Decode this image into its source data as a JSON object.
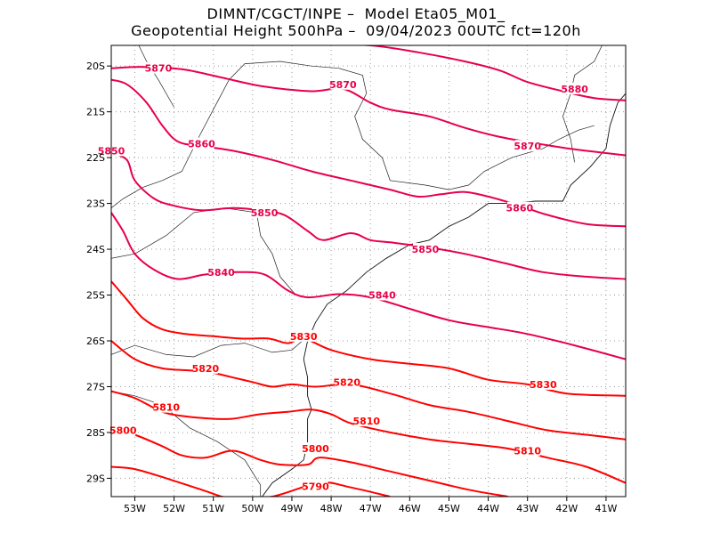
{
  "title_line1": "DIMNT/CGCT/INPE –  Model Eta05_M01_",
  "title_line2": "Geopotential Height 500hPa –  09/04/2023 00UTC fct=120h",
  "chart_data": {
    "type": "contour_map",
    "variable": "Geopotential Height 500hPa",
    "x_axis": {
      "range": [
        -53.6,
        -40.5
      ],
      "ticks": [
        {
          "value": -53,
          "label": "53W"
        },
        {
          "value": -52,
          "label": "52W"
        },
        {
          "value": -51,
          "label": "51W"
        },
        {
          "value": -50,
          "label": "50W"
        },
        {
          "value": -49,
          "label": "49W"
        },
        {
          "value": -48,
          "label": "48W"
        },
        {
          "value": -47,
          "label": "47W"
        },
        {
          "value": -46,
          "label": "46W"
        },
        {
          "value": -45,
          "label": "45W"
        },
        {
          "value": -44,
          "label": "44W"
        },
        {
          "value": -43,
          "label": "43W"
        },
        {
          "value": -42,
          "label": "42W"
        },
        {
          "value": -41,
          "label": "41W"
        }
      ]
    },
    "y_axis": {
      "range": [
        -29.4,
        -19.55
      ],
      "ticks": [
        {
          "value": -20,
          "label": "20S"
        },
        {
          "value": -21,
          "label": "21S"
        },
        {
          "value": -22,
          "label": "22S"
        },
        {
          "value": -23,
          "label": "23S"
        },
        {
          "value": -24,
          "label": "24S"
        },
        {
          "value": -25,
          "label": "25S"
        },
        {
          "value": -26,
          "label": "26S"
        },
        {
          "value": -27,
          "label": "27S"
        },
        {
          "value": -28,
          "label": "28S"
        },
        {
          "value": -29,
          "label": "29S"
        }
      ]
    },
    "grid": true,
    "contours": [
      {
        "level": 5880,
        "color": "#e8004a",
        "points": [
          [
            -48.5,
            -19.5
          ],
          [
            -47,
            -19.55
          ],
          [
            -45.8,
            -19.7
          ],
          [
            -44.6,
            -19.9
          ],
          [
            -43.7,
            -20.1
          ],
          [
            -43,
            -20.35
          ],
          [
            -42.1,
            -20.55
          ],
          [
            -41.3,
            -20.7
          ],
          [
            -40.5,
            -20.75
          ]
        ],
        "labels": [
          {
            "text": "5880",
            "lon": -41.8,
            "lat": -20.5
          }
        ]
      },
      {
        "level": 5870,
        "color": "#e8004a",
        "points": [
          [
            -53.6,
            -20.05
          ],
          [
            -52.8,
            -20.02
          ],
          [
            -51.8,
            -20.07
          ],
          [
            -50.8,
            -20.25
          ],
          [
            -49.7,
            -20.45
          ],
          [
            -48.5,
            -20.55
          ],
          [
            -47.7,
            -20.5
          ],
          [
            -47,
            -20.8
          ],
          [
            -46.5,
            -20.95
          ],
          [
            -45.5,
            -21.1
          ],
          [
            -44.6,
            -21.35
          ],
          [
            -43.7,
            -21.55
          ],
          [
            -42.7,
            -21.7
          ],
          [
            -41.8,
            -21.82
          ],
          [
            -40.5,
            -21.95
          ]
        ],
        "labels": [
          {
            "text": "5870",
            "lon": -52.4,
            "lat": -20.05
          },
          {
            "text": "5870",
            "lon": -47.7,
            "lat": -20.4
          },
          {
            "text": "5870",
            "lon": -43,
            "lat": -21.75
          }
        ]
      },
      {
        "level": 5860,
        "color": "#e8004a",
        "points": [
          [
            -53.6,
            -20.3
          ],
          [
            -53.2,
            -20.4
          ],
          [
            -52.7,
            -20.8
          ],
          [
            -52.3,
            -21.3
          ],
          [
            -51.9,
            -21.65
          ],
          [
            -51.3,
            -21.75
          ],
          [
            -50.5,
            -21.85
          ],
          [
            -49.5,
            -22.05
          ],
          [
            -48.5,
            -22.3
          ],
          [
            -47.5,
            -22.5
          ],
          [
            -46.5,
            -22.7
          ],
          [
            -45.8,
            -22.85
          ],
          [
            -45.2,
            -22.8
          ],
          [
            -44.6,
            -22.75
          ],
          [
            -44,
            -22.85
          ],
          [
            -43.2,
            -23.05
          ],
          [
            -42.5,
            -23.25
          ],
          [
            -41.5,
            -23.45
          ],
          [
            -40.5,
            -23.5
          ]
        ],
        "labels": [
          {
            "text": "5860",
            "lon": -51.3,
            "lat": -21.7
          },
          {
            "text": "5860",
            "lon": -43.2,
            "lat": -23.1
          }
        ]
      },
      {
        "level": 5850,
        "color": "#e8004a",
        "points": [
          [
            -53.6,
            -21.9
          ],
          [
            -53.2,
            -22.05
          ],
          [
            -53,
            -22.5
          ],
          [
            -52.5,
            -22.9
          ],
          [
            -52,
            -23.05
          ],
          [
            -51.3,
            -23.15
          ],
          [
            -50.5,
            -23.1
          ],
          [
            -49.8,
            -23.15
          ],
          [
            -49.2,
            -23.25
          ],
          [
            -48.6,
            -23.6
          ],
          [
            -48.2,
            -23.8
          ],
          [
            -47.5,
            -23.65
          ],
          [
            -47,
            -23.8
          ],
          [
            -46.5,
            -23.85
          ],
          [
            -45.6,
            -23.95
          ],
          [
            -44.6,
            -24.1
          ],
          [
            -43.6,
            -24.3
          ],
          [
            -42.6,
            -24.5
          ],
          [
            -41.5,
            -24.6
          ],
          [
            -40.5,
            -24.65
          ]
        ],
        "labels": [
          {
            "text": "5850",
            "lon": -53.6,
            "lat": -21.85
          },
          {
            "text": "5850",
            "lon": -49.7,
            "lat": -23.2
          },
          {
            "text": "5850",
            "lon": -45.6,
            "lat": -24.0
          }
        ]
      },
      {
        "level": 5840,
        "color": "#e8004a",
        "points": [
          [
            -53.6,
            -23.2
          ],
          [
            -53.3,
            -23.6
          ],
          [
            -53,
            -24.1
          ],
          [
            -52.5,
            -24.45
          ],
          [
            -51.9,
            -24.65
          ],
          [
            -51.2,
            -24.55
          ],
          [
            -50.4,
            -24.5
          ],
          [
            -49.7,
            -24.55
          ],
          [
            -49.1,
            -24.9
          ],
          [
            -48.6,
            -25.05
          ],
          [
            -47.8,
            -24.98
          ],
          [
            -47,
            -25.05
          ],
          [
            -46,
            -25.3
          ],
          [
            -45,
            -25.55
          ],
          [
            -44,
            -25.7
          ],
          [
            -43,
            -25.85
          ],
          [
            -41.8,
            -26.1
          ],
          [
            -40.5,
            -26.4
          ]
        ],
        "labels": [
          {
            "text": "5840",
            "lon": -50.8,
            "lat": -24.5
          },
          {
            "text": "5840",
            "lon": -46.7,
            "lat": -25.0
          }
        ]
      },
      {
        "level": 5830,
        "color": "#ff0000",
        "points": [
          [
            -53.6,
            -24.7
          ],
          [
            -53.2,
            -25.1
          ],
          [
            -52.8,
            -25.5
          ],
          [
            -52.3,
            -25.75
          ],
          [
            -51.7,
            -25.85
          ],
          [
            -51,
            -25.9
          ],
          [
            -50.3,
            -25.95
          ],
          [
            -49.6,
            -25.95
          ],
          [
            -49.1,
            -26.05
          ],
          [
            -48.7,
            -25.95
          ],
          [
            -48,
            -26.2
          ],
          [
            -47,
            -26.4
          ],
          [
            -46,
            -26.5
          ],
          [
            -45,
            -26.6
          ],
          [
            -44,
            -26.85
          ],
          [
            -43,
            -26.95
          ],
          [
            -42,
            -27.15
          ],
          [
            -40.5,
            -27.2
          ]
        ],
        "labels": [
          {
            "text": "5830",
            "lon": -48.7,
            "lat": -25.9
          },
          {
            "text": "5830",
            "lon": -42.6,
            "lat": -26.95
          }
        ]
      },
      {
        "level": 5820,
        "color": "#ff0000",
        "points": [
          [
            -53.6,
            -26.0
          ],
          [
            -53,
            -26.4
          ],
          [
            -52.3,
            -26.6
          ],
          [
            -51.5,
            -26.65
          ],
          [
            -51,
            -26.7
          ],
          [
            -50.5,
            -26.8
          ],
          [
            -50,
            -26.9
          ],
          [
            -49.5,
            -27.0
          ],
          [
            -49,
            -26.95
          ],
          [
            -48.4,
            -27.0
          ],
          [
            -47.5,
            -26.95
          ],
          [
            -46.5,
            -27.15
          ],
          [
            -45.5,
            -27.4
          ],
          [
            -44.5,
            -27.55
          ],
          [
            -43.5,
            -27.75
          ],
          [
            -42.5,
            -27.95
          ],
          [
            -41.5,
            -28.05
          ],
          [
            -40.5,
            -28.15
          ]
        ],
        "labels": [
          {
            "text": "5820",
            "lon": -51.2,
            "lat": -26.6
          },
          {
            "text": "5820",
            "lon": -47.6,
            "lat": -26.9
          }
        ]
      },
      {
        "level": 5810,
        "color": "#ff0000",
        "points": [
          [
            -53.6,
            -27.1
          ],
          [
            -53,
            -27.25
          ],
          [
            -52.3,
            -27.55
          ],
          [
            -51.7,
            -27.65
          ],
          [
            -51,
            -27.7
          ],
          [
            -50.5,
            -27.7
          ],
          [
            -49.8,
            -27.6
          ],
          [
            -49.1,
            -27.55
          ],
          [
            -48.5,
            -27.5
          ],
          [
            -48,
            -27.6
          ],
          [
            -47.5,
            -27.8
          ],
          [
            -46.5,
            -28.0
          ],
          [
            -45.5,
            -28.15
          ],
          [
            -44.5,
            -28.25
          ],
          [
            -43.5,
            -28.35
          ],
          [
            -42.5,
            -28.55
          ],
          [
            -41.5,
            -28.75
          ],
          [
            -40.5,
            -29.1
          ]
        ],
        "labels": [
          {
            "text": "5810",
            "lon": -52.2,
            "lat": -27.45
          },
          {
            "text": "5810",
            "lon": -47.1,
            "lat": -27.75
          },
          {
            "text": "5810",
            "lon": -43,
            "lat": -28.4
          }
        ]
      },
      {
        "level": 5800,
        "color": "#ff0000",
        "points": [
          [
            -53.6,
            -27.9
          ],
          [
            -53,
            -28.05
          ],
          [
            -52.3,
            -28.3
          ],
          [
            -51.8,
            -28.5
          ],
          [
            -51.2,
            -28.55
          ],
          [
            -50.5,
            -28.4
          ],
          [
            -49.8,
            -28.6
          ],
          [
            -49.3,
            -28.7
          ],
          [
            -48.6,
            -28.7
          ],
          [
            -48.3,
            -28.55
          ],
          [
            -47.5,
            -28.65
          ],
          [
            -46.5,
            -28.85
          ],
          [
            -45.5,
            -29.05
          ],
          [
            -44.5,
            -29.25
          ],
          [
            -43.5,
            -29.4
          ]
        ],
        "labels": [
          {
            "text": "5800",
            "lon": -53.3,
            "lat": -27.95
          },
          {
            "text": "5800",
            "lon": -48.4,
            "lat": -28.35
          }
        ]
      },
      {
        "level": 5790,
        "color": "#ff0000",
        "points": [
          [
            -53.6,
            -28.75
          ],
          [
            -53,
            -28.8
          ],
          [
            -52.2,
            -29.0
          ],
          [
            -51.3,
            -29.25
          ],
          [
            -50.5,
            -29.45
          ],
          [
            -49.5,
            -29.4
          ],
          [
            -48.3,
            -29.1
          ],
          [
            -47.5,
            -29.2
          ],
          [
            -46.5,
            -29.4
          ]
        ],
        "labels": [
          {
            "text": "5790",
            "lon": -48.4,
            "lat": -29.18
          }
        ]
      }
    ]
  },
  "coastline": [
    [
      [
        -49.8,
        -29.45
      ],
      [
        -49.5,
        -29.1
      ],
      [
        -49.0,
        -28.8
      ],
      [
        -48.7,
        -28.6
      ],
      [
        -48.6,
        -28.2
      ],
      [
        -48.6,
        -27.7
      ],
      [
        -48.5,
        -27.5
      ],
      [
        -48.6,
        -27.2
      ],
      [
        -48.6,
        -26.8
      ],
      [
        -48.7,
        -26.4
      ],
      [
        -48.6,
        -26.0
      ],
      [
        -48.4,
        -25.6
      ],
      [
        -48.1,
        -25.2
      ],
      [
        -47.6,
        -24.9
      ],
      [
        -47.1,
        -24.5
      ],
      [
        -46.6,
        -24.2
      ],
      [
        -46.0,
        -23.9
      ],
      [
        -45.5,
        -23.8
      ],
      [
        -45.0,
        -23.5
      ],
      [
        -44.5,
        -23.3
      ],
      [
        -44.0,
        -23.0
      ],
      [
        -43.4,
        -23.0
      ],
      [
        -42.8,
        -22.95
      ],
      [
        -42.1,
        -22.95
      ],
      [
        -41.9,
        -22.6
      ],
      [
        -41.4,
        -22.2
      ],
      [
        -41.0,
        -21.8
      ],
      [
        -40.9,
        -21.3
      ],
      [
        -40.7,
        -20.8
      ],
      [
        -40.5,
        -20.6
      ]
    ]
  ],
  "borders": [
    [
      [
        -53.6,
        -23.1
      ],
      [
        -53.3,
        -22.9
      ],
      [
        -52.8,
        -22.65
      ],
      [
        -52.3,
        -22.5
      ],
      [
        -51.8,
        -22.3
      ],
      [
        -51.4,
        -21.6
      ],
      [
        -51.0,
        -20.95
      ],
      [
        -50.6,
        -20.3
      ],
      [
        -50.2,
        -19.95
      ],
      [
        -49.3,
        -19.9
      ],
      [
        -48.5,
        -20.0
      ],
      [
        -47.8,
        -20.05
      ],
      [
        -47.2,
        -20.2
      ],
      [
        -47.1,
        -20.6
      ],
      [
        -47.4,
        -21.1
      ],
      [
        -47.2,
        -21.6
      ],
      [
        -46.7,
        -22.0
      ],
      [
        -46.5,
        -22.5
      ],
      [
        -45.6,
        -22.6
      ],
      [
        -45.0,
        -22.7
      ],
      [
        -44.5,
        -22.6
      ],
      [
        -44.1,
        -22.3
      ],
      [
        -43.4,
        -22.0
      ],
      [
        -42.6,
        -21.8
      ],
      [
        -42.2,
        -21.6
      ],
      [
        -41.7,
        -21.4
      ],
      [
        -41.3,
        -21.3
      ]
    ],
    [
      [
        -53.6,
        -24.2
      ],
      [
        -53.0,
        -24.1
      ],
      [
        -52.2,
        -23.7
      ],
      [
        -51.5,
        -23.2
      ],
      [
        -50.7,
        -23.1
      ],
      [
        -49.9,
        -23.2
      ],
      [
        -49.8,
        -23.7
      ],
      [
        -49.5,
        -24.1
      ],
      [
        -49.3,
        -24.6
      ],
      [
        -48.9,
        -25.0
      ]
    ],
    [
      [
        -53.6,
        -26.3
      ],
      [
        -53.0,
        -26.1
      ],
      [
        -52.2,
        -26.3
      ],
      [
        -51.5,
        -26.35
      ],
      [
        -50.8,
        -26.1
      ],
      [
        -50.2,
        -26.05
      ],
      [
        -49.5,
        -26.25
      ],
      [
        -49.0,
        -26.2
      ],
      [
        -48.6,
        -25.9
      ]
    ],
    [
      [
        -53.6,
        -27.1
      ],
      [
        -53.0,
        -27.2
      ],
      [
        -52.3,
        -27.4
      ],
      [
        -51.6,
        -27.9
      ],
      [
        -50.9,
        -28.2
      ],
      [
        -50.2,
        -28.6
      ],
      [
        -49.8,
        -29.15
      ],
      [
        -49.8,
        -29.45
      ]
    ],
    [
      [
        -41.8,
        -22.1
      ],
      [
        -41.9,
        -21.6
      ],
      [
        -42.1,
        -21.1
      ],
      [
        -41.9,
        -20.6
      ],
      [
        -41.8,
        -20.2
      ],
      [
        -41.3,
        -19.9
      ],
      [
        -41.1,
        -19.55
      ]
    ],
    [
      [
        -52.9,
        -19.55
      ],
      [
        -52.7,
        -19.9
      ],
      [
        -52.4,
        -20.3
      ],
      [
        -52.0,
        -20.9
      ]
    ]
  ]
}
